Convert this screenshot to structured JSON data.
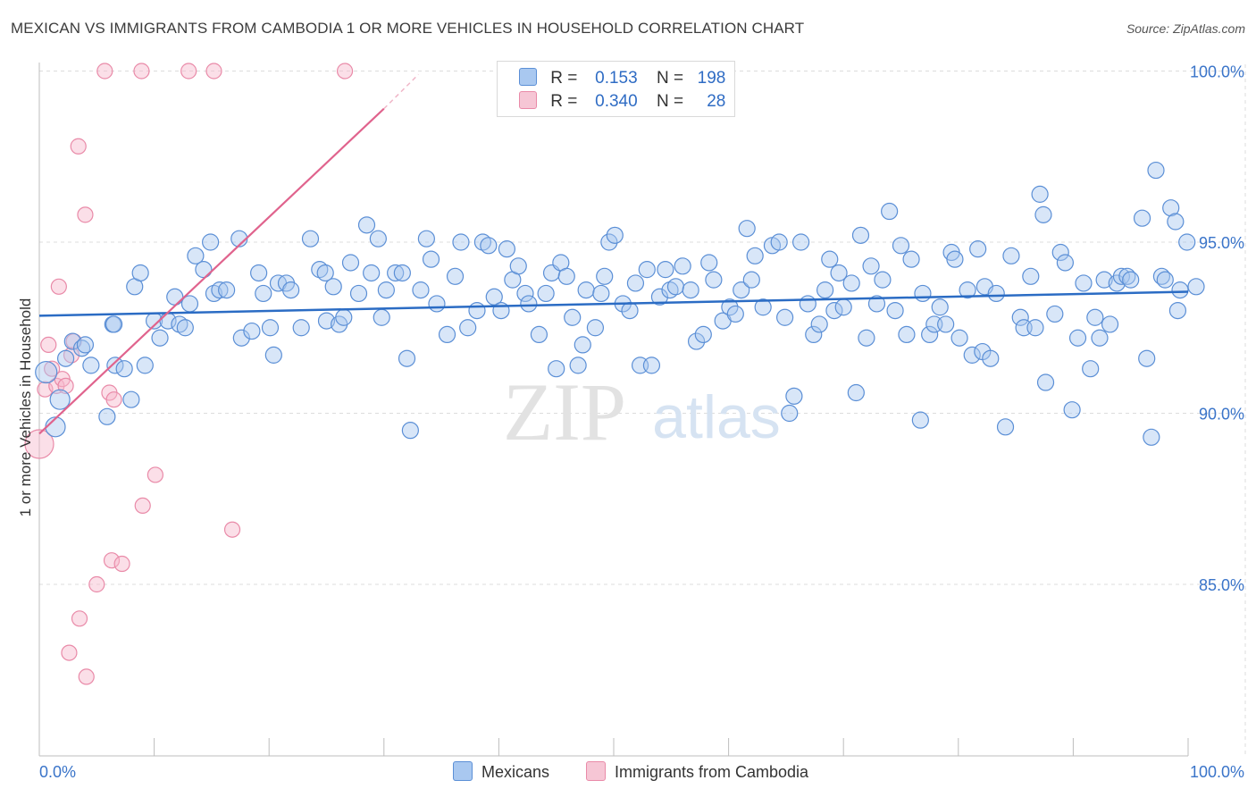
{
  "title": "MEXICAN VS IMMIGRANTS FROM CAMBODIA 1 OR MORE VEHICLES IN HOUSEHOLD CORRELATION CHART",
  "source": "Source: ZipAtlas.com",
  "legend": {
    "row1": {
      "r_label": "R =",
      "r_value": "0.153",
      "n_label": "N =",
      "n_value": "198"
    },
    "row2": {
      "r_label": "R =",
      "r_value": "0.340",
      "n_label": "N =",
      "n_value": "28"
    }
  },
  "bottom_legend": {
    "series1": "Mexicans",
    "series2": "Immigrants from Cambodia"
  },
  "colors": {
    "blue_fill": "#a9c8f0",
    "blue_stroke": "#5b8fd6",
    "blue_line": "#2b6cc4",
    "pink_fill": "#f6b9cc",
    "pink_stroke": "#e98aa8",
    "pink_line": "#e0638d",
    "axis_text": "#3a74c9",
    "grid": "#dcdcdc"
  },
  "watermark": {
    "zip": "ZIP",
    "atlas": "atlas"
  },
  "chart_data": {
    "type": "scatter",
    "title": "MEXICAN VS IMMIGRANTS FROM CAMBODIA 1 OR MORE VEHICLES IN HOUSEHOLD CORRELATION CHART",
    "xlabel": "",
    "ylabel": "1 or more Vehicles in Household",
    "xlim": [
      0,
      100
    ],
    "ylim": [
      80.5,
      100.5
    ],
    "x_tick_labels": [
      "0.0%",
      "100.0%"
    ],
    "y_ticks": [
      85,
      90,
      95,
      100
    ],
    "y_tick_labels": [
      "85.0%",
      "90.0%",
      "95.0%",
      "100.0%"
    ],
    "grid": true,
    "series": [
      {
        "name": "Mexicans",
        "R": 0.153,
        "N": 198,
        "trend": {
          "x": [
            0,
            100
          ],
          "y": [
            92.85,
            93.55
          ]
        },
        "points": [
          [
            0.6,
            91.2
          ],
          [
            1.8,
            90.4
          ],
          [
            1.4,
            89.6
          ],
          [
            2.3,
            91.6
          ],
          [
            2.9,
            92.1
          ],
          [
            3.7,
            91.9
          ],
          [
            4.5,
            91.4
          ],
          [
            6.6,
            91.4
          ],
          [
            7.4,
            91.3
          ],
          [
            8.0,
            90.4
          ],
          [
            5.9,
            89.9
          ],
          [
            4.0,
            92.0
          ],
          [
            6.4,
            92.6
          ],
          [
            6.5,
            92.6
          ],
          [
            8.3,
            93.7
          ],
          [
            8.8,
            94.1
          ],
          [
            9.2,
            91.4
          ],
          [
            10.0,
            92.7
          ],
          [
            10.5,
            92.2
          ],
          [
            11.2,
            92.7
          ],
          [
            11.8,
            93.4
          ],
          [
            12.2,
            92.6
          ],
          [
            12.7,
            92.5
          ],
          [
            13.1,
            93.2
          ],
          [
            13.6,
            94.6
          ],
          [
            14.3,
            94.2
          ],
          [
            14.9,
            95.0
          ],
          [
            15.2,
            93.5
          ],
          [
            15.7,
            93.6
          ],
          [
            16.3,
            93.6
          ],
          [
            17.4,
            95.1
          ],
          [
            17.6,
            92.2
          ],
          [
            18.5,
            92.4
          ],
          [
            19.1,
            94.1
          ],
          [
            19.5,
            93.5
          ],
          [
            20.1,
            92.5
          ],
          [
            20.4,
            91.7
          ],
          [
            20.8,
            93.8
          ],
          [
            21.5,
            93.8
          ],
          [
            21.9,
            93.6
          ],
          [
            22.8,
            92.5
          ],
          [
            23.6,
            95.1
          ],
          [
            24.4,
            94.2
          ],
          [
            24.9,
            94.1
          ],
          [
            25.0,
            92.7
          ],
          [
            25.6,
            93.7
          ],
          [
            26.1,
            92.6
          ],
          [
            26.5,
            92.8
          ],
          [
            27.1,
            94.4
          ],
          [
            27.8,
            93.5
          ],
          [
            28.5,
            95.5
          ],
          [
            28.9,
            94.1
          ],
          [
            29.5,
            95.1
          ],
          [
            29.8,
            92.8
          ],
          [
            30.2,
            93.6
          ],
          [
            31.0,
            94.1
          ],
          [
            31.6,
            94.1
          ],
          [
            32.0,
            91.6
          ],
          [
            32.3,
            89.5
          ],
          [
            33.2,
            93.6
          ],
          [
            33.7,
            95.1
          ],
          [
            34.1,
            94.5
          ],
          [
            34.6,
            93.2
          ],
          [
            35.5,
            92.3
          ],
          [
            36.2,
            94.0
          ],
          [
            36.7,
            95.0
          ],
          [
            37.3,
            92.5
          ],
          [
            38.1,
            93.0
          ],
          [
            38.6,
            95.0
          ],
          [
            39.1,
            94.9
          ],
          [
            39.6,
            93.4
          ],
          [
            40.2,
            93.0
          ],
          [
            40.7,
            94.8
          ],
          [
            41.2,
            93.9
          ],
          [
            41.7,
            94.3
          ],
          [
            42.3,
            93.5
          ],
          [
            42.6,
            93.2
          ],
          [
            43.5,
            92.3
          ],
          [
            44.1,
            93.5
          ],
          [
            44.6,
            94.1
          ],
          [
            45.0,
            91.3
          ],
          [
            45.4,
            94.4
          ],
          [
            45.9,
            94.0
          ],
          [
            46.4,
            92.8
          ],
          [
            46.9,
            91.4
          ],
          [
            47.3,
            92.0
          ],
          [
            47.6,
            93.6
          ],
          [
            48.4,
            92.5
          ],
          [
            48.9,
            93.5
          ],
          [
            49.2,
            94.0
          ],
          [
            49.6,
            95.0
          ],
          [
            50.1,
            95.2
          ],
          [
            50.8,
            93.2
          ],
          [
            51.4,
            93.0
          ],
          [
            51.9,
            93.8
          ],
          [
            52.3,
            91.4
          ],
          [
            52.9,
            94.2
          ],
          [
            53.3,
            91.4
          ],
          [
            54.0,
            93.4
          ],
          [
            54.5,
            94.2
          ],
          [
            54.9,
            93.6
          ],
          [
            55.4,
            93.7
          ],
          [
            56.0,
            94.3
          ],
          [
            56.7,
            93.6
          ],
          [
            57.2,
            92.1
          ],
          [
            57.8,
            92.3
          ],
          [
            58.3,
            94.4
          ],
          [
            58.7,
            93.9
          ],
          [
            59.5,
            92.7
          ],
          [
            60.1,
            93.1
          ],
          [
            60.6,
            92.9
          ],
          [
            61.1,
            93.6
          ],
          [
            61.6,
            95.4
          ],
          [
            62.0,
            93.9
          ],
          [
            62.3,
            94.6
          ],
          [
            63.0,
            93.1
          ],
          [
            63.8,
            94.9
          ],
          [
            64.4,
            95.0
          ],
          [
            64.9,
            92.8
          ],
          [
            65.3,
            90.0
          ],
          [
            65.7,
            90.5
          ],
          [
            66.3,
            95.0
          ],
          [
            66.9,
            93.2
          ],
          [
            67.4,
            92.3
          ],
          [
            67.9,
            92.6
          ],
          [
            68.4,
            93.6
          ],
          [
            68.8,
            94.5
          ],
          [
            69.2,
            93.0
          ],
          [
            69.6,
            94.1
          ],
          [
            70.0,
            93.1
          ],
          [
            70.7,
            93.8
          ],
          [
            71.1,
            90.6
          ],
          [
            71.5,
            95.2
          ],
          [
            72.0,
            92.2
          ],
          [
            72.4,
            94.3
          ],
          [
            72.9,
            93.2
          ],
          [
            73.4,
            93.9
          ],
          [
            74.0,
            95.9
          ],
          [
            74.5,
            93.0
          ],
          [
            75.0,
            94.9
          ],
          [
            75.5,
            92.3
          ],
          [
            75.9,
            94.5
          ],
          [
            76.7,
            89.8
          ],
          [
            76.9,
            93.5
          ],
          [
            77.5,
            92.3
          ],
          [
            77.9,
            92.6
          ],
          [
            78.4,
            93.1
          ],
          [
            78.9,
            92.6
          ],
          [
            79.4,
            94.7
          ],
          [
            79.7,
            94.5
          ],
          [
            80.1,
            92.2
          ],
          [
            80.8,
            93.6
          ],
          [
            81.2,
            91.7
          ],
          [
            81.7,
            94.8
          ],
          [
            82.1,
            91.8
          ],
          [
            82.3,
            93.7
          ],
          [
            82.8,
            91.6
          ],
          [
            83.3,
            93.5
          ],
          [
            84.1,
            89.6
          ],
          [
            84.6,
            94.6
          ],
          [
            85.4,
            92.8
          ],
          [
            85.7,
            92.5
          ],
          [
            86.3,
            94.0
          ],
          [
            86.7,
            92.5
          ],
          [
            87.1,
            96.4
          ],
          [
            87.4,
            95.8
          ],
          [
            87.6,
            90.9
          ],
          [
            88.4,
            92.9
          ],
          [
            88.9,
            94.7
          ],
          [
            89.3,
            94.4
          ],
          [
            89.9,
            90.1
          ],
          [
            90.4,
            92.2
          ],
          [
            90.9,
            93.8
          ],
          [
            91.5,
            91.3
          ],
          [
            91.9,
            92.8
          ],
          [
            92.3,
            92.2
          ],
          [
            92.7,
            93.9
          ],
          [
            93.2,
            92.6
          ],
          [
            93.8,
            93.8
          ],
          [
            94.2,
            94.0
          ],
          [
            94.7,
            94.0
          ],
          [
            95.0,
            93.9
          ],
          [
            96.0,
            95.7
          ],
          [
            96.4,
            91.6
          ],
          [
            96.8,
            89.3
          ],
          [
            97.2,
            97.1
          ],
          [
            97.7,
            94.0
          ],
          [
            98.0,
            93.9
          ],
          [
            98.5,
            96.0
          ],
          [
            98.9,
            95.6
          ],
          [
            99.1,
            93.0
          ],
          [
            99.3,
            93.6
          ],
          [
            99.9,
            95.0
          ],
          [
            100.7,
            93.7
          ]
        ]
      },
      {
        "name": "Immigrants from Cambodia",
        "R": 0.34,
        "N": 28,
        "trend": {
          "x": [
            0,
            30
          ],
          "y": [
            89.4,
            98.9
          ],
          "dashed_extension": {
            "x": [
              30,
              33
            ],
            "y": [
              98.9,
              99.9
            ]
          }
        },
        "points": [
          [
            0.0,
            89.1
          ],
          [
            0.5,
            90.7
          ],
          [
            0.8,
            92.0
          ],
          [
            1.1,
            91.3
          ],
          [
            1.5,
            90.8
          ],
          [
            1.7,
            93.7
          ],
          [
            2.0,
            91.0
          ],
          [
            2.3,
            90.8
          ],
          [
            2.8,
            91.7
          ],
          [
            3.0,
            92.1
          ],
          [
            3.4,
            97.8
          ],
          [
            4.0,
            95.8
          ],
          [
            5.0,
            85.0
          ],
          [
            5.7,
            100.0
          ],
          [
            6.1,
            90.6
          ],
          [
            6.3,
            85.7
          ],
          [
            6.5,
            90.4
          ],
          [
            7.2,
            85.6
          ],
          [
            8.9,
            100.0
          ],
          [
            9.0,
            87.3
          ],
          [
            10.1,
            88.2
          ],
          [
            13.0,
            100.0
          ],
          [
            15.2,
            100.0
          ],
          [
            16.8,
            86.6
          ],
          [
            26.6,
            100.0
          ],
          [
            3.5,
            84.0
          ],
          [
            2.6,
            83.0
          ],
          [
            4.1,
            82.3
          ]
        ]
      }
    ]
  }
}
